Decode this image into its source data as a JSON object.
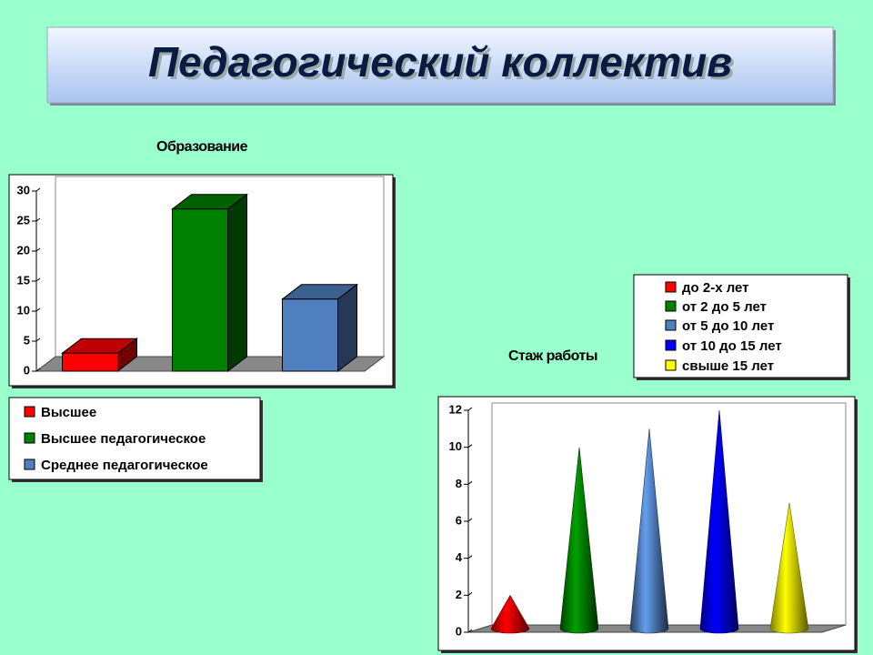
{
  "title": "Педагогический коллектив",
  "chart_data": [
    {
      "type": "bar",
      "title": "Образование",
      "categories": [
        "Высшее",
        "Высшее педагогическое",
        "Среднее педагогическое"
      ],
      "values": [
        3,
        27,
        12
      ],
      "colors": [
        "#ff0000",
        "#008000",
        "#4f7fbf"
      ],
      "ylim": [
        0,
        30
      ],
      "yticks": [
        0,
        5,
        10,
        15,
        20,
        25,
        30
      ]
    },
    {
      "type": "cone",
      "title": "Стаж работы",
      "categories": [
        "до 2-х лет",
        "от 2 до 5 лет",
        "от 5 до 10 лет",
        "от 10 до 15 лет",
        "свыше 15 лет"
      ],
      "values": [
        2,
        10,
        11,
        12,
        7
      ],
      "colors": [
        "#ff0000",
        "#008000",
        "#4f7fbf",
        "#0000ff",
        "#ffff00"
      ],
      "ylim": [
        0,
        12
      ],
      "yticks": [
        0,
        2,
        4,
        6,
        8,
        10,
        12
      ]
    }
  ]
}
